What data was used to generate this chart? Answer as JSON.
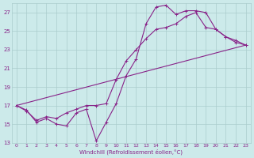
{
  "bg_color": "#cceaea",
  "grid_color": "#aacccc",
  "line_color": "#882288",
  "xlabel": "Windchill (Refroidissement éolien,°C)",
  "xlim": [
    -0.5,
    23.5
  ],
  "ylim": [
    13,
    28
  ],
  "yticks": [
    13,
    15,
    17,
    19,
    21,
    23,
    25,
    27
  ],
  "xticks": [
    0,
    1,
    2,
    3,
    4,
    5,
    6,
    7,
    8,
    9,
    10,
    11,
    12,
    13,
    14,
    15,
    16,
    17,
    18,
    19,
    20,
    21,
    22,
    23
  ],
  "lines": [
    {
      "x": [
        0,
        1,
        2,
        3,
        4,
        5,
        6,
        7,
        8,
        9,
        10,
        11,
        12,
        13,
        14,
        15,
        16,
        17,
        18,
        19,
        20,
        21,
        22,
        23
      ],
      "y": [
        17.0,
        16.5,
        15.2,
        15.6,
        15.0,
        14.8,
        16.2,
        16.6,
        13.2,
        15.2,
        17.2,
        20.2,
        22.0,
        25.8,
        27.6,
        27.8,
        26.8,
        27.2,
        27.2,
        27.0,
        25.2,
        24.4,
        24.0,
        23.5
      ]
    },
    {
      "x": [
        0,
        1,
        2,
        3,
        4,
        5,
        6,
        7,
        8,
        9,
        10,
        11,
        12,
        13,
        14,
        15,
        16,
        17,
        18,
        19,
        20,
        21,
        22,
        23
      ],
      "y": [
        17.0,
        16.4,
        15.4,
        15.8,
        15.6,
        16.2,
        16.6,
        17.0,
        17.0,
        17.2,
        19.8,
        21.8,
        23.0,
        24.2,
        25.2,
        25.4,
        25.8,
        26.6,
        27.0,
        25.4,
        25.2,
        24.4,
        23.8,
        23.5
      ]
    },
    {
      "x": [
        0,
        23
      ],
      "y": [
        17.0,
        23.5
      ]
    }
  ],
  "marker": "+",
  "markersize": 3,
  "linewidth": 0.8
}
